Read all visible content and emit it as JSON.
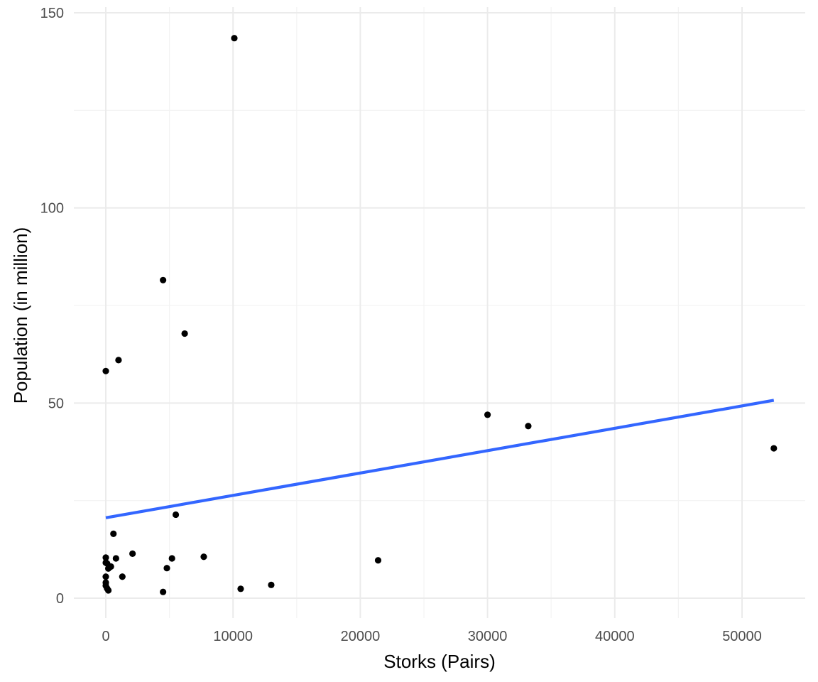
{
  "chart_data": {
    "type": "scatter",
    "title": "",
    "xlabel": "Storks (Pairs)",
    "ylabel": "Population (in million)",
    "xlim": [
      -2600,
      55000
    ],
    "ylim": [
      -5,
      150
    ],
    "x_ticks": [
      0,
      10000,
      20000,
      30000,
      40000,
      50000
    ],
    "y_ticks": [
      0,
      50,
      100,
      150
    ],
    "x_tick_labels": [
      "0",
      "10000",
      "20000",
      "30000",
      "40000",
      "50000"
    ],
    "y_tick_labels": [
      "0",
      "50",
      "100",
      "150"
    ],
    "grid": true,
    "legend": "none",
    "colors": {
      "points": "#000000",
      "fit_line": "#3366ff",
      "grid": "#ebebeb"
    },
    "series": [
      {
        "type": "points",
        "points": [
          {
            "x": 10100,
            "y": 143.5
          },
          {
            "x": 4500,
            "y": 81.5
          },
          {
            "x": 6200,
            "y": 67.8
          },
          {
            "x": 1000,
            "y": 61.0
          },
          {
            "x": 0,
            "y": 58.2
          },
          {
            "x": 30000,
            "y": 47.0
          },
          {
            "x": 33200,
            "y": 44.1
          },
          {
            "x": 52500,
            "y": 38.4
          },
          {
            "x": 5500,
            "y": 21.4
          },
          {
            "x": 600,
            "y": 16.5
          },
          {
            "x": 2100,
            "y": 11.4
          },
          {
            "x": 7700,
            "y": 10.6
          },
          {
            "x": 0,
            "y": 10.4
          },
          {
            "x": 800,
            "y": 10.2
          },
          {
            "x": 5200,
            "y": 10.2
          },
          {
            "x": 21400,
            "y": 9.7
          },
          {
            "x": 0,
            "y": 9.1
          },
          {
            "x": 100,
            "y": 8.9
          },
          {
            "x": 400,
            "y": 8.1
          },
          {
            "x": 200,
            "y": 7.6
          },
          {
            "x": 4800,
            "y": 7.7
          },
          {
            "x": 0,
            "y": 5.5
          },
          {
            "x": 1300,
            "y": 5.5
          },
          {
            "x": 0,
            "y": 4.0
          },
          {
            "x": 0,
            "y": 3.2
          },
          {
            "x": 13000,
            "y": 3.4
          },
          {
            "x": 100,
            "y": 2.5
          },
          {
            "x": 200,
            "y": 2.0
          },
          {
            "x": 10600,
            "y": 2.4
          },
          {
            "x": 4500,
            "y": 1.6
          }
        ]
      },
      {
        "type": "linear-fit",
        "x": [
          0,
          52500
        ],
        "y": [
          20.6,
          50.7
        ]
      }
    ]
  }
}
